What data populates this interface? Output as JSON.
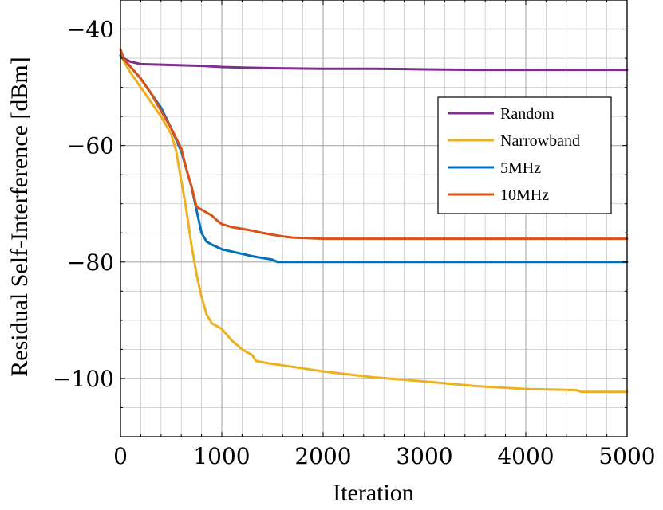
{
  "chart_data": {
    "type": "line",
    "xlabel": "Iteration",
    "ylabel": "Residual Self-Interference [dBm]",
    "xlim": [
      0,
      5000
    ],
    "ylim": [
      -110,
      -35
    ],
    "x_ticks": [
      0,
      1000,
      2000,
      3000,
      4000,
      5000
    ],
    "x_tick_labels": [
      "0",
      "1000",
      "2000",
      "3000",
      "4000",
      "5000"
    ],
    "y_ticks": [
      -40,
      -60,
      -80,
      -100
    ],
    "y_tick_labels": [
      "−40",
      "−60",
      "−80",
      "−100"
    ],
    "grid": true,
    "legend_position": "upper-right",
    "series": [
      {
        "name": "Random",
        "color": "#7E2F8E",
        "x": [
          0,
          50,
          100,
          200,
          400,
          600,
          800,
          1000,
          1200,
          1500,
          2000,
          2500,
          3000,
          3500,
          4000,
          4500,
          5000
        ],
        "y": [
          -44.5,
          -45.2,
          -45.6,
          -46.0,
          -46.1,
          -46.2,
          -46.3,
          -46.5,
          -46.6,
          -46.7,
          -46.8,
          -46.8,
          -46.9,
          -47.0,
          -47.0,
          -47.0,
          -47.0
        ]
      },
      {
        "name": "Narrowband",
        "color": "#EDB120",
        "x": [
          0,
          100,
          200,
          300,
          400,
          500,
          550,
          600,
          650,
          700,
          750,
          800,
          850,
          900,
          1000,
          1050,
          1100,
          1200,
          1300,
          1340,
          1400,
          1500,
          1700,
          2000,
          2500,
          3000,
          3500,
          4000,
          4500,
          4550,
          5000
        ],
        "y": [
          -44.5,
          -47.5,
          -50.0,
          -52.5,
          -55.0,
          -58.0,
          -61.0,
          -66.0,
          -71.0,
          -77.0,
          -82.0,
          -86.0,
          -89.0,
          -90.5,
          -91.5,
          -92.5,
          -93.5,
          -95.0,
          -96.0,
          -97.0,
          -97.2,
          -97.5,
          -98.0,
          -98.8,
          -99.8,
          -100.5,
          -101.3,
          -101.8,
          -102.0,
          -102.3,
          -102.3
        ]
      },
      {
        "name": "5MHz",
        "color": "#0072BD",
        "x": [
          0,
          100,
          200,
          300,
          400,
          500,
          600,
          650,
          700,
          750,
          800,
          850,
          900,
          1000,
          1100,
          1200,
          1300,
          1400,
          1500,
          1550,
          1600,
          2000,
          3000,
          4000,
          5000
        ],
        "y": [
          -44.5,
          -46.5,
          -48.5,
          -51.0,
          -53.5,
          -57.0,
          -61.0,
          -64.0,
          -67.0,
          -71.0,
          -75.0,
          -76.5,
          -77.0,
          -77.8,
          -78.2,
          -78.6,
          -79.0,
          -79.3,
          -79.6,
          -80.0,
          -80.0,
          -80.0,
          -80.0,
          -80.0,
          -80.0
        ]
      },
      {
        "name": "10MHz",
        "color": "#D95319",
        "x": [
          0,
          30,
          100,
          200,
          300,
          400,
          500,
          600,
          650,
          700,
          750,
          800,
          850,
          900,
          950,
          1000,
          1100,
          1200,
          1300,
          1400,
          1500,
          1600,
          1700,
          2000,
          2500,
          3000,
          4000,
          5000
        ],
        "y": [
          -43.5,
          -45.0,
          -46.5,
          -48.5,
          -51.0,
          -54.0,
          -57.0,
          -60.5,
          -64.0,
          -67.0,
          -70.5,
          -71.0,
          -71.5,
          -72.0,
          -72.8,
          -73.5,
          -74.0,
          -74.3,
          -74.6,
          -75.0,
          -75.3,
          -75.6,
          -75.8,
          -76.0,
          -76.0,
          -76.0,
          -76.0,
          -76.0
        ]
      }
    ]
  }
}
